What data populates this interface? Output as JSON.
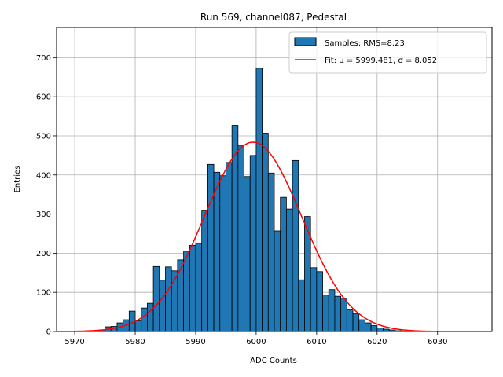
{
  "chart_data": {
    "type": "bar",
    "title": "Run 569, channel087, Pedestal",
    "xlabel": "ADC Counts",
    "ylabel": "Entries",
    "xlim": [
      5967,
      6039
    ],
    "ylim": [
      0,
      777
    ],
    "xticks": [
      5970,
      5980,
      5990,
      6000,
      6010,
      6020,
      6030
    ],
    "yticks": [
      0,
      100,
      200,
      300,
      400,
      500,
      600,
      700
    ],
    "grid": true,
    "legend_position": "top-right",
    "histogram": {
      "name": "Samples: RMS=8.23",
      "color": "#1f77b4",
      "edge_color": "#000000",
      "bin_start": 5973,
      "bin_width": 1,
      "counts": [
        2,
        4,
        12,
        13,
        22,
        30,
        52,
        27,
        60,
        72,
        166,
        131,
        165,
        155,
        183,
        205,
        220,
        225,
        308,
        427,
        407,
        398,
        432,
        527,
        476,
        396,
        450,
        673,
        507,
        405,
        257,
        343,
        313,
        437,
        132,
        294,
        163,
        153,
        93,
        107,
        90,
        85,
        55,
        45,
        30,
        22,
        15,
        9,
        6,
        4,
        2,
        1
      ]
    },
    "fit": {
      "name": "Fit: μ = 5999.481, σ = 8.052",
      "color": "#ff0000",
      "mu": 5999.481,
      "sigma": 8.052,
      "amplitude": 484,
      "x_range": [
        5969,
        6030
      ]
    }
  }
}
